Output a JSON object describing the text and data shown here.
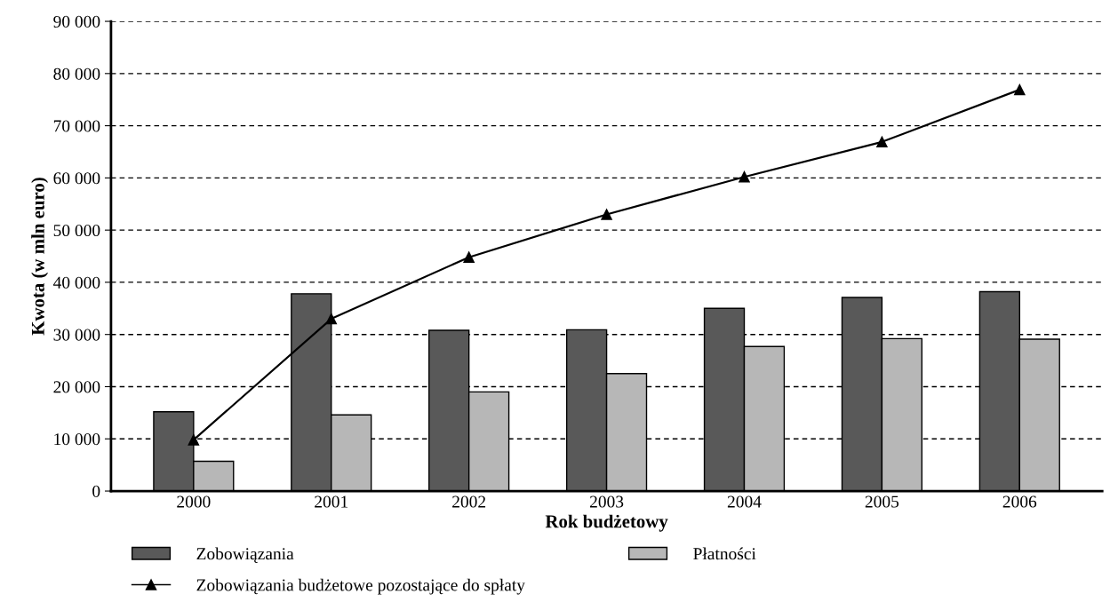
{
  "chart_data": {
    "type": "bar",
    "xlabel": "Rok budżetowy",
    "ylabel": "Kwota (w mln euro)",
    "categories": [
      "2000",
      "2001",
      "2002",
      "2003",
      "2004",
      "2005",
      "2006"
    ],
    "series": [
      {
        "name": "Zobowiązania",
        "color": "#595959",
        "values": [
          15200,
          37800,
          30800,
          30900,
          35000,
          37100,
          38200
        ]
      },
      {
        "name": "Płatności",
        "color": "#b7b7b7",
        "values": [
          5700,
          14600,
          19000,
          22500,
          27700,
          29200,
          29100
        ]
      },
      {
        "name": "Zobowiązania budżetowe pozostające do spłaty",
        "type": "line",
        "color": "#000000",
        "marker": "triangle",
        "values": [
          9800,
          33000,
          44800,
          53000,
          60200,
          66900,
          76900
        ]
      }
    ],
    "ylim": [
      0,
      90000
    ],
    "yticks": [
      0,
      {
        "value": 10000,
        "label": "10 000"
      },
      {
        "value": 20000,
        "label": "20 000"
      },
      {
        "value": 30000,
        "label": "30 000"
      },
      {
        "value": 40000,
        "label": "40 000"
      },
      {
        "value": 50000,
        "label": "50 000"
      },
      {
        "value": 60000,
        "label": "60 000"
      },
      {
        "value": 70000,
        "label": "70 000"
      },
      {
        "value": 80000,
        "label": "80 000"
      },
      {
        "value": 90000,
        "label": "90 000"
      }
    ],
    "grid": "y",
    "legend": "bottom"
  }
}
